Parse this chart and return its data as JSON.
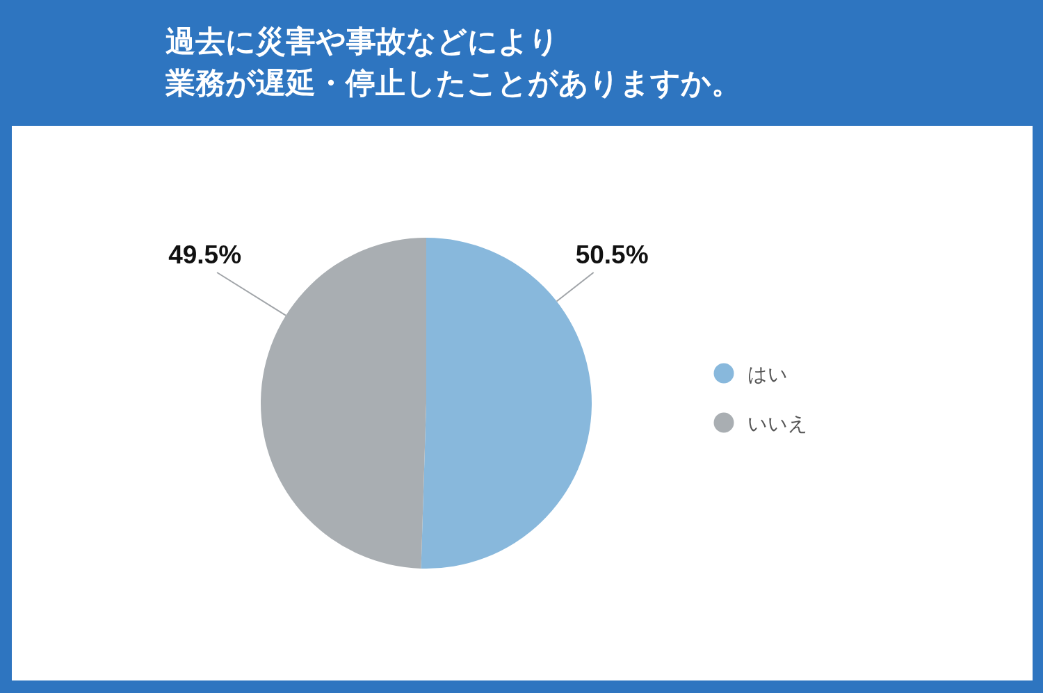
{
  "chart_data": {
    "type": "pie",
    "title": "過去に災害や事故などにより業務が遅延・停止したことがありますか。",
    "categories": [
      "はい",
      "いいえ"
    ],
    "values": [
      50.5,
      49.5
    ],
    "colors": [
      "#88b8dc",
      "#a9aeb2"
    ],
    "value_labels": [
      "50.5%",
      "49.5%"
    ],
    "legend": "right"
  }
}
